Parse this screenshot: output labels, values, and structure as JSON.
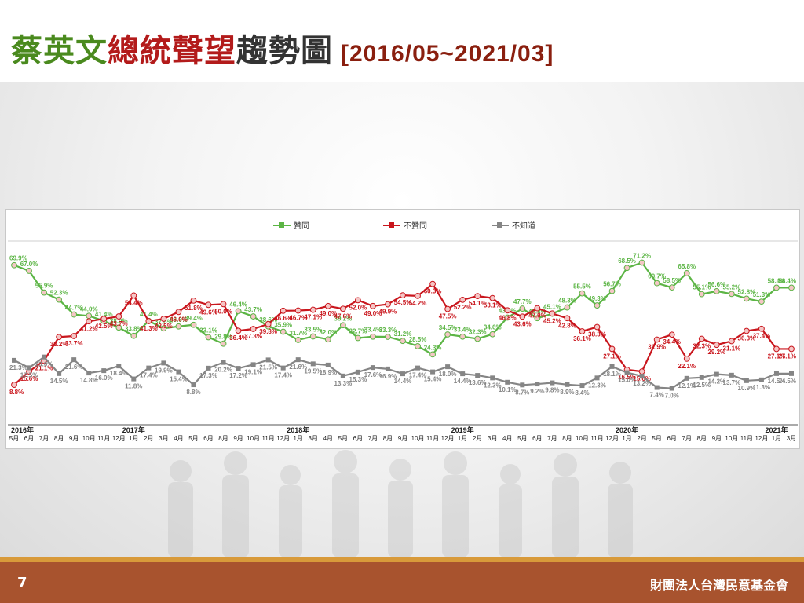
{
  "title": {
    "part1": "蔡英文",
    "part2": "總統聲望",
    "part3": "趨勢圖",
    "date_range": "[2016/05~2021/03]"
  },
  "footer": {
    "page_number": "7",
    "organization": "財團法人台灣民意基金會"
  },
  "colors": {
    "approve": "#5cb545",
    "disapprove": "#c9161d",
    "unknown": "#858585"
  },
  "chart_data": {
    "type": "line",
    "title": "",
    "xlabel": "",
    "ylabel": "",
    "ylim": [
      0,
      75
    ],
    "grid": false,
    "legend_placement": "top-center",
    "x": [
      "5月",
      "6月",
      "7月",
      "8月",
      "9月",
      "10月",
      "11月",
      "12月",
      "1月",
      "2月",
      "3月",
      "4月",
      "5月",
      "6月",
      "8月",
      "9月",
      "10月",
      "11月",
      "12月",
      "1月",
      "3月",
      "4月",
      "5月",
      "6月",
      "7月",
      "8月",
      "9月",
      "10月",
      "11月",
      "12月",
      "1月",
      "2月",
      "3月",
      "4月",
      "5月",
      "6月",
      "7月",
      "8月",
      "10月",
      "11月",
      "12月",
      "1月",
      "2月",
      "5月",
      "6月",
      "7月",
      "8月",
      "9月",
      "10月",
      "11月",
      "12月",
      "1月",
      "3月"
    ],
    "year_markers": [
      {
        "index": 0,
        "label": "2016年"
      },
      {
        "index": 8,
        "label": "2017年"
      },
      {
        "index": 19,
        "label": "2018年"
      },
      {
        "index": 30,
        "label": "2019年"
      },
      {
        "index": 41,
        "label": "2020年"
      },
      {
        "index": 51,
        "label": "2021年"
      }
    ],
    "series": [
      {
        "name": "贊同",
        "color": "#5cb545",
        "values": [
          69.9,
          67.0,
          55.9,
          52.3,
          44.7,
          44.0,
          41.4,
          38.0,
          33.8,
          41.4,
          37.6,
          38.6,
          39.4,
          33.1,
          29.8,
          46.4,
          43.7,
          38.6,
          35.9,
          31.7,
          33.5,
          32.0,
          39.2,
          32.7,
          33.4,
          33.3,
          31.2,
          28.5,
          24.3,
          34.5,
          33.4,
          32.3,
          34.6,
          43.1,
          47.7,
          42.8,
          45.1,
          48.3,
          55.5,
          49.3,
          56.7,
          68.5,
          71.2,
          60.7,
          58.5,
          65.8,
          55.1,
          56.6,
          55.2,
          52.8,
          51.3,
          58.4,
          58.4
        ]
      },
      {
        "name": "不贊同",
        "color": "#c9161d",
        "values": [
          8.8,
          15.6,
          21.1,
          33.2,
          33.7,
          41.2,
          42.5,
          43.7,
          54.4,
          41.3,
          42.5,
          46.0,
          51.8,
          49.6,
          50.0,
          36.4,
          37.3,
          39.8,
          46.6,
          46.7,
          47.1,
          49.0,
          47.6,
          52.0,
          49.0,
          49.9,
          54.5,
          54.2,
          60.3,
          47.5,
          52.2,
          54.1,
          53.1,
          46.8,
          43.6,
          47.9,
          45.2,
          42.8,
          36.1,
          38.3,
          27.1,
          16.5,
          15.6,
          31.9,
          34.4,
          22.1,
          32.3,
          29.2,
          31.1,
          36.3,
          37.4,
          27.1,
          27.1
        ]
      },
      {
        "name": "不知道",
        "color": "#858585",
        "values": [
          21.3,
          17.5,
          23.0,
          14.5,
          21.6,
          14.8,
          16.0,
          18.4,
          11.8,
          17.4,
          19.9,
          15.4,
          8.8,
          17.3,
          20.2,
          17.2,
          19.1,
          21.5,
          17.4,
          21.6,
          19.5,
          18.9,
          13.3,
          15.3,
          17.6,
          16.9,
          14.4,
          17.4,
          15.4,
          18.0,
          14.4,
          13.6,
          12.3,
          10.1,
          8.7,
          9.2,
          9.8,
          8.9,
          8.4,
          12.3,
          18.1,
          15.0,
          13.2,
          7.4,
          7.0,
          12.1,
          12.5,
          14.2,
          13.7,
          10.9,
          11.3,
          14.5,
          14.5
        ]
      }
    ]
  }
}
